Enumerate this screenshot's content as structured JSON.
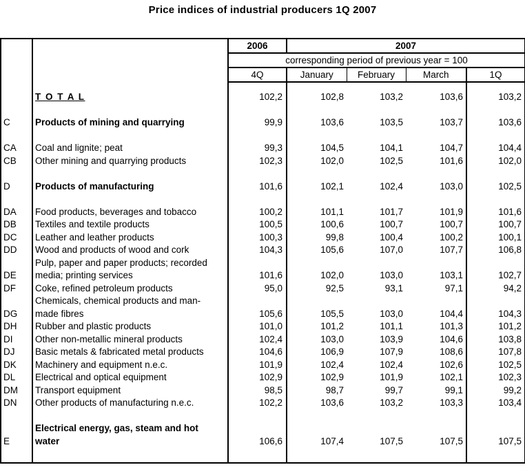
{
  "title": "Price indices of industrial producers 1Q 2007",
  "table": {
    "header": {
      "year_left": "2006",
      "year_right": "2007",
      "note": "corresponding period of previous year = 100",
      "period_columns": [
        "4Q",
        "January",
        "February",
        "March",
        "1Q"
      ]
    },
    "rows": [
      {
        "type": "spacer",
        "size": "sm"
      },
      {
        "type": "data",
        "code": "",
        "label": "T O T A L",
        "style": "total",
        "values": [
          "102,2",
          "102,8",
          "103,2",
          "103,6",
          "103,2"
        ]
      },
      {
        "type": "spacer"
      },
      {
        "type": "data",
        "code": "C",
        "label": "Products of mining and quarrying",
        "style": "bold",
        "values": [
          "99,9",
          "103,6",
          "103,5",
          "103,7",
          "103,6"
        ]
      },
      {
        "type": "spacer"
      },
      {
        "type": "data",
        "code": "CA",
        "label": "Coal and lignite; peat",
        "values": [
          "99,3",
          "104,5",
          "104,1",
          "104,7",
          "104,4"
        ]
      },
      {
        "type": "data",
        "code": "CB",
        "label": "Other mining and quarrying products",
        "values": [
          "102,3",
          "102,0",
          "102,5",
          "101,6",
          "102,0"
        ]
      },
      {
        "type": "spacer"
      },
      {
        "type": "data",
        "code": "D",
        "label": "Products of manufacturing",
        "style": "bold",
        "values": [
          "101,6",
          "102,1",
          "102,4",
          "103,0",
          "102,5"
        ]
      },
      {
        "type": "spacer"
      },
      {
        "type": "data",
        "code": "DA",
        "label": "Food products, beverages and tobacco",
        "values": [
          "100,2",
          "101,1",
          "101,7",
          "101,9",
          "101,6"
        ]
      },
      {
        "type": "data",
        "code": "DB",
        "label": "Textiles and textile products",
        "values": [
          "100,5",
          "100,6",
          "100,7",
          "100,7",
          "100,7"
        ]
      },
      {
        "type": "data",
        "code": "DC",
        "label": "Leather and leather products",
        "values": [
          "100,3",
          "99,8",
          "100,4",
          "100,2",
          "100,1"
        ]
      },
      {
        "type": "data",
        "code": "DD",
        "label": "Wood and products of wood and cork",
        "values": [
          "104,3",
          "105,6",
          "107,0",
          "107,7",
          "106,8"
        ]
      },
      {
        "type": "data",
        "code": "DE",
        "label": "Pulp, paper and paper products; recorded\nmedia; printing services",
        "values": [
          "101,6",
          "102,0",
          "103,0",
          "103,1",
          "102,7"
        ]
      },
      {
        "type": "data",
        "code": "DF",
        "label": "Coke, refined petroleum products",
        "values": [
          "95,0",
          "92,5",
          "93,1",
          "97,1",
          "94,2"
        ]
      },
      {
        "type": "data",
        "code": "DG",
        "label": "Chemicals, chemical products and man-\nmade fibres",
        "values": [
          "105,6",
          "105,5",
          "103,0",
          "104,4",
          "104,3"
        ]
      },
      {
        "type": "data",
        "code": "DH",
        "label": "Rubber and plastic products",
        "values": [
          "101,0",
          "101,2",
          "101,1",
          "101,3",
          "101,2"
        ]
      },
      {
        "type": "data",
        "code": "DI",
        "label": "Other non-metallic mineral products",
        "values": [
          "102,4",
          "103,0",
          "103,9",
          "104,6",
          "103,8"
        ]
      },
      {
        "type": "data",
        "code": "DJ",
        "label": "Basic metals & fabricated metal products",
        "values": [
          "104,6",
          "106,9",
          "107,9",
          "108,6",
          "107,8"
        ]
      },
      {
        "type": "data",
        "code": "DK",
        "label": "Machinery and equipment n.e.c.",
        "values": [
          "101,9",
          "102,4",
          "102,4",
          "102,6",
          "102,5"
        ]
      },
      {
        "type": "data",
        "code": "DL",
        "label": "Electrical and optical equipment",
        "values": [
          "102,9",
          "102,9",
          "101,9",
          "102,1",
          "102,3"
        ]
      },
      {
        "type": "data",
        "code": "DM",
        "label": "Transport equipment",
        "values": [
          "98,5",
          "98,7",
          "99,7",
          "99,1",
          "99,2"
        ]
      },
      {
        "type": "data",
        "code": "DN",
        "label": "Other products of manufacturing n.e.c.",
        "values": [
          "102,2",
          "103,6",
          "103,2",
          "103,3",
          "103,4"
        ]
      },
      {
        "type": "spacer"
      },
      {
        "type": "data",
        "code": "E",
        "label": "Electrical energy, gas, steam and hot\nwater",
        "style": "bold",
        "values": [
          "106,6",
          "107,4",
          "107,5",
          "107,5",
          "107,5"
        ]
      },
      {
        "type": "spacer",
        "size": "lg"
      }
    ]
  }
}
